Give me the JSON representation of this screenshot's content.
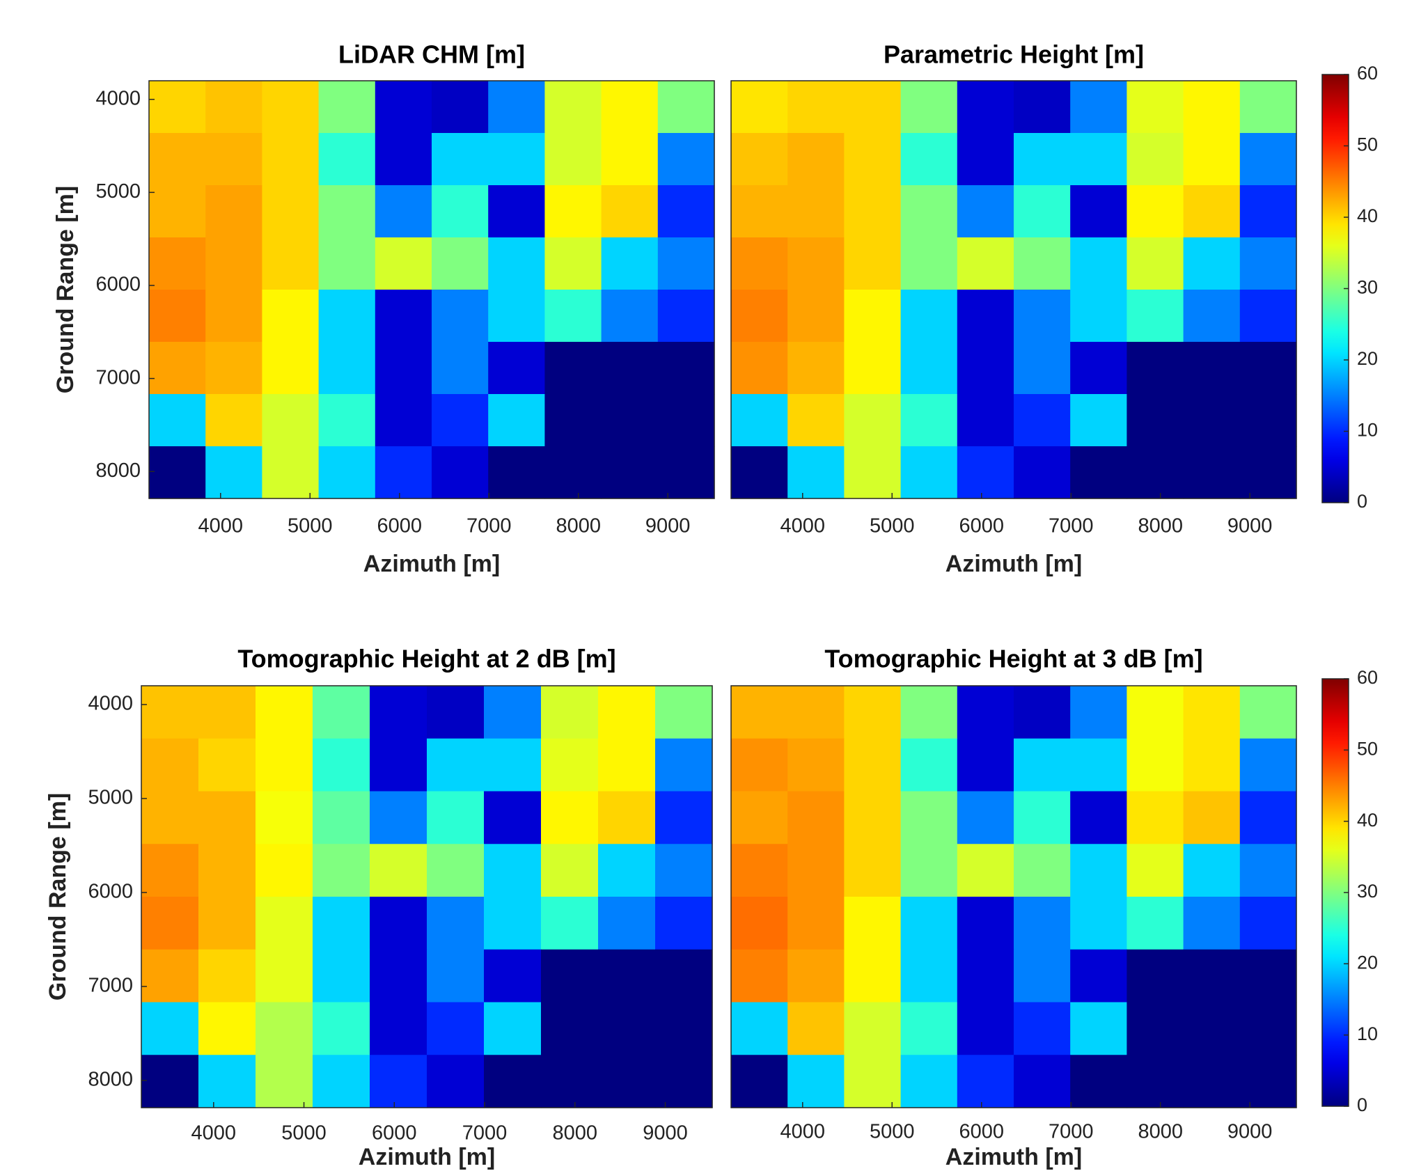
{
  "chart_data": [
    {
      "type": "heatmap",
      "title": "LiDAR CHM [m]",
      "xlabel": "Azimuth [m]",
      "ylabel": "Ground Range [m]",
      "colormap": "jet",
      "xlim": [
        3200,
        9520
      ],
      "ylim": [
        3800,
        8290
      ],
      "y_reversed": true,
      "xticks": [
        4000,
        5000,
        6000,
        7000,
        8000,
        9000
      ],
      "yticks": [
        4000,
        5000,
        6000,
        7000,
        8000
      ],
      "clim": [
        0,
        60
      ],
      "values": [
        [
          40,
          41,
          40,
          30,
          5,
          4,
          15,
          35,
          38,
          30
        ],
        [
          42,
          42,
          40,
          25,
          5,
          20,
          20,
          35,
          38,
          15
        ],
        [
          42,
          43,
          40,
          30,
          15,
          25,
          5,
          38,
          40,
          10
        ],
        [
          44,
          43,
          40,
          30,
          35,
          30,
          20,
          35,
          20,
          15
        ],
        [
          45,
          43,
          38,
          20,
          5,
          15,
          20,
          25,
          15,
          10
        ],
        [
          43,
          42,
          38,
          20,
          5,
          15,
          5,
          0,
          0,
          0
        ],
        [
          20,
          40,
          35,
          25,
          5,
          10,
          20,
          0,
          0,
          0
        ],
        [
          0,
          20,
          35,
          20,
          10,
          5,
          0,
          0,
          0,
          0
        ]
      ]
    },
    {
      "type": "heatmap",
      "title": "Parametric Height [m]",
      "xlabel": "Azimuth [m]",
      "colormap": "jet",
      "xlim": [
        3200,
        9520
      ],
      "ylim": [
        3800,
        8290
      ],
      "y_reversed": true,
      "xticks": [
        4000,
        5000,
        6000,
        7000,
        8000,
        9000
      ],
      "clim": [
        0,
        60
      ],
      "colorbar": {
        "ticks": [
          0,
          10,
          20,
          30,
          40,
          50,
          60
        ]
      },
      "values": [
        [
          39,
          40,
          40,
          30,
          5,
          4,
          15,
          36,
          38,
          30
        ],
        [
          41,
          42,
          40,
          25,
          5,
          20,
          20,
          35,
          38,
          15
        ],
        [
          42,
          42,
          40,
          30,
          15,
          25,
          5,
          38,
          40,
          10
        ],
        [
          44,
          43,
          40,
          30,
          35,
          30,
          20,
          35,
          20,
          15
        ],
        [
          45,
          43,
          38,
          20,
          5,
          15,
          20,
          25,
          15,
          10
        ],
        [
          44,
          42,
          38,
          20,
          5,
          15,
          5,
          0,
          0,
          0
        ],
        [
          20,
          40,
          35,
          25,
          5,
          10,
          20,
          0,
          0,
          0
        ],
        [
          0,
          20,
          35,
          20,
          10,
          5,
          0,
          0,
          0,
          0
        ]
      ]
    },
    {
      "type": "heatmap",
      "title": "Tomographic Height at 2 dB [m]",
      "xlabel": "Azimuth [m]",
      "ylabel": "Ground Range [m]",
      "colormap": "jet",
      "xlim": [
        3200,
        9520
      ],
      "ylim": [
        3800,
        8290
      ],
      "y_reversed": true,
      "xticks": [
        4000,
        5000,
        6000,
        7000,
        8000,
        9000
      ],
      "yticks": [
        4000,
        5000,
        6000,
        7000,
        8000
      ],
      "clim": [
        0,
        60
      ],
      "values": [
        [
          41,
          41,
          38,
          28,
          5,
          4,
          15,
          35,
          38,
          30
        ],
        [
          42,
          40,
          38,
          25,
          5,
          20,
          20,
          36,
          38,
          15
        ],
        [
          42,
          42,
          37,
          28,
          15,
          25,
          5,
          38,
          40,
          10
        ],
        [
          44,
          42,
          38,
          30,
          35,
          30,
          20,
          35,
          20,
          15
        ],
        [
          45,
          42,
          36,
          20,
          5,
          15,
          20,
          25,
          15,
          10
        ],
        [
          43,
          40,
          36,
          20,
          5,
          15,
          5,
          0,
          0,
          0
        ],
        [
          20,
          38,
          33,
          25,
          5,
          10,
          20,
          0,
          0,
          0
        ],
        [
          0,
          20,
          33,
          20,
          10,
          5,
          0,
          0,
          0,
          0
        ]
      ]
    },
    {
      "type": "heatmap",
      "title": "Tomographic Height at 3 dB [m]",
      "xlabel": "Azimuth [m]",
      "colormap": "jet",
      "xlim": [
        3200,
        9520
      ],
      "ylim": [
        3800,
        8290
      ],
      "y_reversed": true,
      "xticks": [
        4000,
        5000,
        6000,
        7000,
        8000,
        9000
      ],
      "clim": [
        0,
        60
      ],
      "colorbar": {
        "ticks": [
          0,
          10,
          20,
          30,
          40,
          50,
          60
        ]
      },
      "values": [
        [
          42,
          42,
          40,
          30,
          5,
          4,
          15,
          37,
          39,
          30
        ],
        [
          44,
          43,
          40,
          25,
          5,
          20,
          20,
          37,
          39,
          15
        ],
        [
          43,
          44,
          40,
          30,
          15,
          25,
          5,
          39,
          41,
          10
        ],
        [
          45,
          44,
          40,
          30,
          35,
          30,
          20,
          36,
          20,
          15
        ],
        [
          46,
          44,
          38,
          20,
          5,
          15,
          20,
          25,
          15,
          10
        ],
        [
          45,
          43,
          38,
          20,
          5,
          15,
          5,
          0,
          0,
          0
        ],
        [
          20,
          41,
          35,
          25,
          5,
          10,
          20,
          0,
          0,
          0
        ],
        [
          0,
          20,
          35,
          20,
          10,
          5,
          0,
          0,
          0,
          0
        ]
      ]
    }
  ]
}
